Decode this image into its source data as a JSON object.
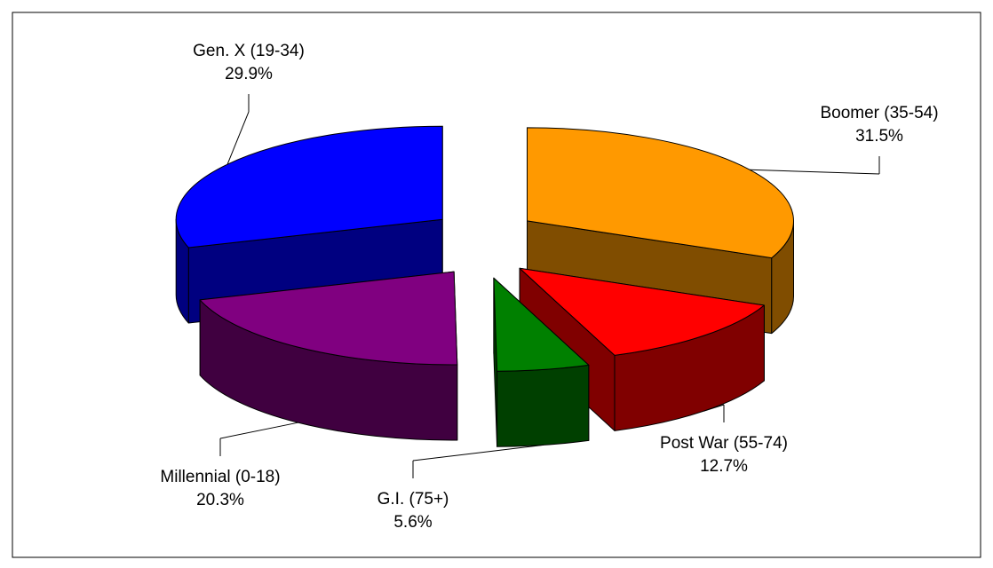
{
  "chart_data": {
    "type": "pie",
    "categories": [
      "Boomer (35-54)",
      "Post War (55-74)",
      "G.I. (75+)",
      "Millennial (0-18)",
      "Gen. X (19-34)"
    ],
    "values": [
      31.5,
      12.7,
      5.6,
      20.3,
      29.9
    ],
    "value_labels": [
      "31.5%",
      "12.7%",
      "5.6%",
      "20.3%",
      "29.9%"
    ],
    "colors": [
      "#ff9900",
      "#ff0000",
      "#008000",
      "#800080",
      "#0000ff"
    ]
  }
}
